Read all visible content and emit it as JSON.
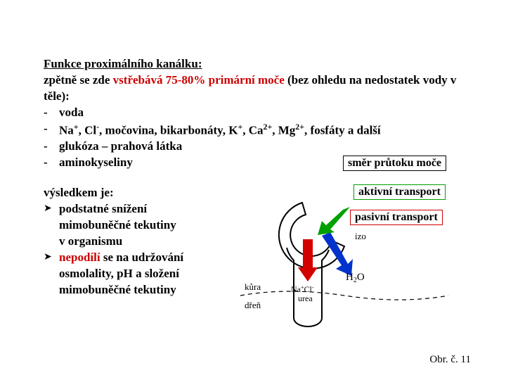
{
  "title": "Funkce proximálního kanálku:",
  "intro_pre": "zpětně se zde ",
  "intro_red": "vstřebává 75-80% primární moče",
  "intro_post": " (bez ohledu na nedostatek vody v těle):",
  "bullets": {
    "b1": "voda",
    "b2_html": "Na<sup>+</sup>, Cl<sup>-</sup>, močovina, bikarbonáty, K<sup>+</sup>, Ca<sup>2+</sup>, Mg<sup>2+</sup>, fosfáty a další",
    "b3": "glukóza – prahová látka",
    "b4": "aminokyseliny"
  },
  "labels": {
    "flow": "směr průtoku moče",
    "active": "aktivní transport",
    "passive": "pasivní transport"
  },
  "box_colors": {
    "flow": "#000000",
    "active": "#00a000",
    "passive": "#cc0000"
  },
  "result_title": "výsledkem je:",
  "result_items": {
    "r1_l1": "podstatné snížení",
    "r1_l2": "mimobuněčné tekutiny",
    "r1_l3": "v organismu",
    "r2_pre": "nepodílí",
    "r2_post": " se na udržování",
    "r2_l2": "osmolality, pH a složení",
    "r2_l3": "mimobuněčné tekutiny"
  },
  "diagram": {
    "izo": "izo",
    "h2o": "H₂O",
    "nacl": "Na⁺Cl⁻",
    "urea": "urea",
    "kura": "kůra",
    "dren": "dřeň",
    "colors": {
      "outline": "#000000",
      "red_arrow": "#d40000",
      "blue_arrow": "#0033cc",
      "green_arrow": "#00a000",
      "text": "#000000"
    }
  },
  "caption": "Obr. č. 11"
}
